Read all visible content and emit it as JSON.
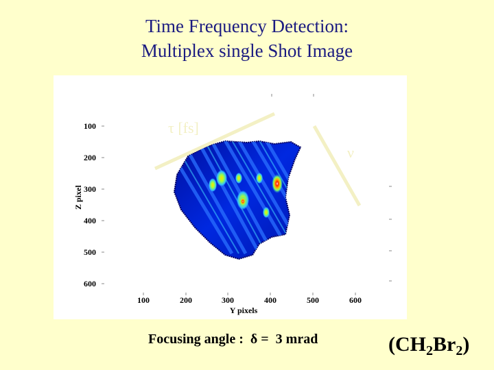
{
  "slide": {
    "title_line1": "Time Frequency Detection:",
    "title_line2": "Multiplex single Shot  Image",
    "caption": "Focusing angle :  δ =  3 mrad",
    "formula": {
      "open": "(CH",
      "sub1": "2",
      "mid": "Br",
      "sub2": "2",
      "close": ")"
    },
    "colors": {
      "background": "#ffffcc",
      "title": "#1a1a80"
    }
  },
  "image": {
    "overlay_label_tau": "τ [fs]",
    "overlay_label_nu": "ν",
    "y_axis_label": "Z pixel",
    "x_axis_label": "Y pixels",
    "y_ticks": [
      "100",
      "200",
      "300",
      "400",
      "500",
      "600"
    ],
    "x_ticks": [
      "100",
      "200",
      "300",
      "400",
      "500",
      "600"
    ],
    "colormap": "jet"
  }
}
